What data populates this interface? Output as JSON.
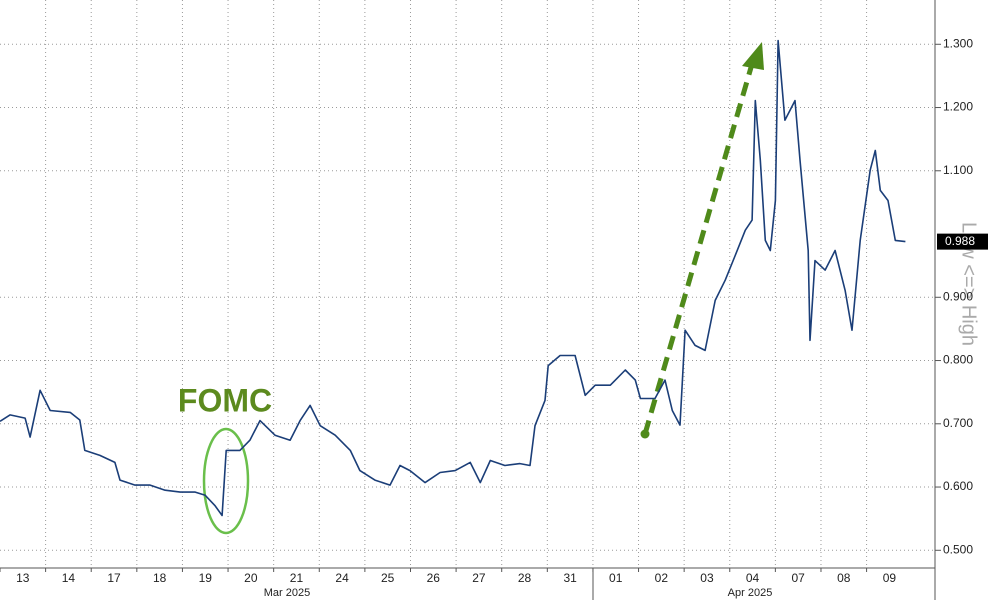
{
  "chart_data": {
    "type": "line",
    "ylabel": "Low <=> High",
    "annotations": [
      "FOMC"
    ],
    "months": [
      "Mar 2025",
      "Apr 2025"
    ],
    "xlim": [
      0,
      20.5
    ],
    "ylim": [
      0.472,
      1.37
    ],
    "xticks": [
      {
        "value": 0,
        "label": "13"
      },
      {
        "value": 1,
        "label": "14"
      },
      {
        "value": 2,
        "label": "17"
      },
      {
        "value": 3,
        "label": "18"
      },
      {
        "value": 4,
        "label": "19"
      },
      {
        "value": 5,
        "label": "20"
      },
      {
        "value": 6,
        "label": "21"
      },
      {
        "value": 7,
        "label": "24"
      },
      {
        "value": 8,
        "label": "25"
      },
      {
        "value": 9,
        "label": "26"
      },
      {
        "value": 10,
        "label": "27"
      },
      {
        "value": 11,
        "label": "28"
      },
      {
        "value": 12,
        "label": "31"
      },
      {
        "value": 13,
        "label": "01"
      },
      {
        "value": 14,
        "label": "02"
      },
      {
        "value": 15,
        "label": "03"
      },
      {
        "value": 16,
        "label": "04"
      },
      {
        "value": 17,
        "label": "07"
      },
      {
        "value": 18,
        "label": "08"
      },
      {
        "value": 19,
        "label": "09"
      }
    ],
    "yticks": [
      {
        "value": 0.5,
        "label": "0.500"
      },
      {
        "value": 0.6,
        "label": "0.600"
      },
      {
        "value": 0.7,
        "label": "0.700"
      },
      {
        "value": 0.8,
        "label": "0.800"
      },
      {
        "value": 0.9,
        "label": "0.900"
      },
      {
        "value": 1.1,
        "label": "1.100"
      },
      {
        "value": 1.2,
        "label": "1.200"
      },
      {
        "value": 1.3,
        "label": "1.300"
      }
    ],
    "last_value": 0.988,
    "grid": true,
    "series": [
      {
        "color": "#1b3e78",
        "x": [
          0.0,
          0.22,
          0.55,
          0.66,
          0.88,
          1.1,
          1.54,
          1.75,
          1.86,
          2.19,
          2.52,
          2.63,
          2.96,
          3.29,
          3.62,
          3.95,
          4.28,
          4.5,
          4.71,
          4.87,
          4.96,
          5.26,
          5.48,
          5.7,
          6.03,
          6.36,
          6.58,
          6.8,
          7.02,
          7.35,
          7.68,
          7.89,
          8.22,
          8.55,
          8.77,
          8.99,
          9.32,
          9.65,
          9.98,
          10.31,
          10.53,
          10.75,
          11.07,
          11.4,
          11.62,
          11.73,
          11.95,
          12.02,
          12.28,
          12.61,
          12.83,
          13.05,
          13.38,
          13.71,
          13.93,
          14.04,
          14.36,
          14.58,
          14.74,
          14.91,
          15.02,
          15.24,
          15.46,
          15.68,
          15.9,
          16.12,
          16.34,
          16.49,
          16.56,
          16.67,
          16.78,
          16.89,
          17.0,
          17.06,
          17.21,
          17.43,
          17.54,
          17.72,
          17.76,
          17.87,
          18.09,
          18.31,
          18.53,
          18.68,
          18.86,
          19.08,
          19.19,
          19.3,
          19.47,
          19.63,
          19.85
        ],
        "values": [
          0.704,
          0.714,
          0.709,
          0.679,
          0.753,
          0.721,
          0.718,
          0.706,
          0.658,
          0.65,
          0.639,
          0.611,
          0.603,
          0.603,
          0.595,
          0.592,
          0.592,
          0.587,
          0.571,
          0.555,
          0.658,
          0.658,
          0.674,
          0.705,
          0.682,
          0.674,
          0.705,
          0.729,
          0.697,
          0.682,
          0.658,
          0.626,
          0.611,
          0.603,
          0.634,
          0.626,
          0.607,
          0.623,
          0.626,
          0.639,
          0.607,
          0.642,
          0.634,
          0.637,
          0.634,
          0.697,
          0.737,
          0.792,
          0.808,
          0.808,
          0.745,
          0.761,
          0.761,
          0.785,
          0.769,
          0.74,
          0.74,
          0.769,
          0.721,
          0.698,
          0.848,
          0.824,
          0.816,
          0.895,
          0.927,
          0.966,
          1.006,
          1.022,
          1.211,
          1.117,
          0.99,
          0.974,
          1.053,
          1.306,
          1.18,
          1.211,
          1.117,
          0.974,
          0.832,
          0.958,
          0.943,
          0.974,
          0.911,
          0.848,
          0.99,
          1.101,
          1.132,
          1.069,
          1.053,
          0.99,
          0.988
        ]
      }
    ]
  }
}
